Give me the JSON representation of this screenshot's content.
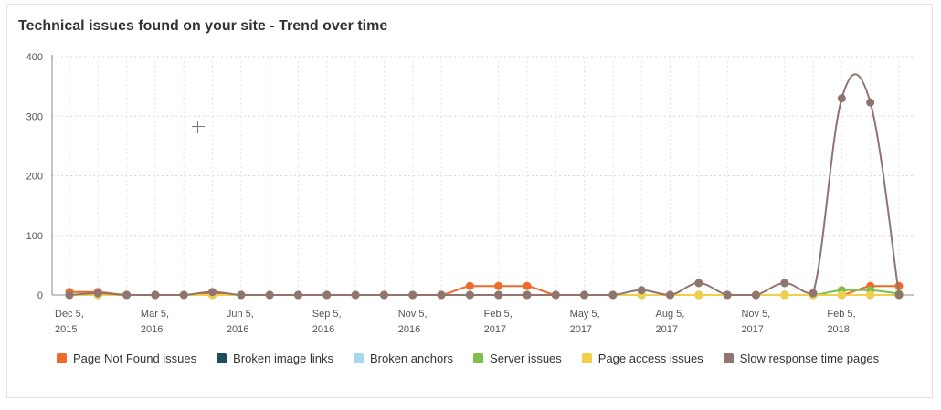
{
  "chart_data": {
    "type": "line",
    "title": "Technical issues found on your site - Trend over time",
    "ylim": [
      0,
      400
    ],
    "yticks": [
      0,
      100,
      200,
      300,
      400
    ],
    "grid": true,
    "legend_position": "bottom-left",
    "xtick_labels": [
      {
        "line1": "Dec 5,",
        "line2": "2015",
        "index": 0
      },
      {
        "line1": "Mar 5,",
        "line2": "2016",
        "index": 3
      },
      {
        "line1": "Jun 5,",
        "line2": "2016",
        "index": 6
      },
      {
        "line1": "Sep 5,",
        "line2": "2016",
        "index": 9
      },
      {
        "line1": "Nov 5,",
        "line2": "2016",
        "index": 12
      },
      {
        "line1": "Feb 5,",
        "line2": "2017",
        "index": 15
      },
      {
        "line1": "May 5,",
        "line2": "2017",
        "index": 18
      },
      {
        "line1": "Aug 5,",
        "line2": "2017",
        "index": 21
      },
      {
        "line1": "Nov 5,",
        "line2": "2017",
        "index": 24
      },
      {
        "line1": "Feb 5,",
        "line2": "2018",
        "index": 27
      }
    ],
    "point_count": 30,
    "series": [
      {
        "name": "Page Not Found issues",
        "color": "#ef6a2c",
        "values": [
          5,
          5,
          0,
          0,
          0,
          3,
          0,
          0,
          0,
          0,
          0,
          0,
          0,
          0,
          15,
          15,
          15,
          0,
          0,
          0,
          0,
          0,
          0,
          0,
          0,
          0,
          0,
          0,
          15,
          15
        ]
      },
      {
        "name": "Broken image links",
        "color": "#1f4e5f",
        "values": [
          0,
          0,
          0,
          0,
          0,
          0,
          0,
          0,
          0,
          0,
          0,
          0,
          0,
          0,
          0,
          0,
          0,
          0,
          0,
          0,
          0,
          0,
          0,
          0,
          0,
          0,
          0,
          0,
          0,
          0
        ]
      },
      {
        "name": "Broken anchors",
        "color": "#a6d8ee",
        "values": [
          0,
          0,
          0,
          0,
          0,
          0,
          0,
          0,
          0,
          0,
          0,
          0,
          0,
          0,
          0,
          0,
          0,
          0,
          0,
          0,
          0,
          0,
          0,
          0,
          0,
          0,
          0,
          0,
          0,
          0
        ]
      },
      {
        "name": "Server issues",
        "color": "#7cbf4b",
        "values": [
          0,
          0,
          0,
          0,
          0,
          0,
          0,
          0,
          0,
          0,
          0,
          0,
          0,
          0,
          0,
          0,
          0,
          0,
          0,
          0,
          0,
          0,
          0,
          0,
          0,
          0,
          0,
          8,
          8,
          2
        ]
      },
      {
        "name": "Page access issues",
        "color": "#f2cf4a",
        "values": [
          0,
          0,
          0,
          0,
          0,
          0,
          0,
          0,
          0,
          0,
          0,
          0,
          0,
          0,
          0,
          0,
          0,
          0,
          0,
          0,
          0,
          0,
          0,
          0,
          0,
          0,
          0,
          0,
          0,
          0
        ]
      },
      {
        "name": "Slow response time pages",
        "color": "#8f7470",
        "values": [
          0,
          3,
          0,
          0,
          0,
          5,
          0,
          0,
          0,
          0,
          0,
          0,
          0,
          0,
          0,
          0,
          0,
          0,
          0,
          0,
          8,
          0,
          20,
          0,
          0,
          20,
          3,
          330,
          323,
          0
        ]
      }
    ]
  }
}
